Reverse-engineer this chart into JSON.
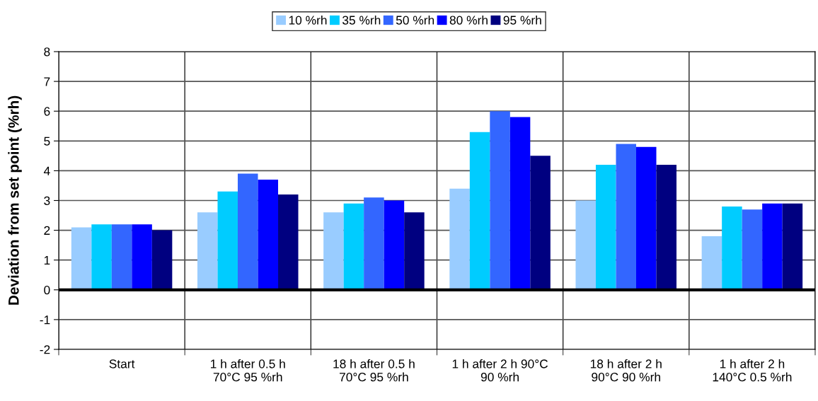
{
  "chart_data": {
    "type": "bar",
    "ylabel": "Deviation from set point (%rh)",
    "categories": [
      "Start",
      "1 h after 0.5 h\n70°C 95 %rh",
      "18 h after 0.5 h\n70°C 95 %rh",
      "1 h after 2 h 90°C\n90 %rh",
      "18 h after 2 h\n90°C 90 %rh",
      "1 h after 2 h\n140°C 0.5 %rh"
    ],
    "series": [
      {
        "name": "10 %rh",
        "color": "#99ccff",
        "values": [
          2.1,
          2.6,
          2.6,
          3.4,
          3.0,
          1.8
        ]
      },
      {
        "name": "35 %rh",
        "color": "#00ccff",
        "values": [
          2.2,
          3.3,
          2.9,
          5.3,
          4.2,
          2.8
        ]
      },
      {
        "name": "50 %rh",
        "color": "#3366ff",
        "values": [
          2.2,
          3.9,
          3.1,
          6.0,
          4.9,
          2.7
        ]
      },
      {
        "name": "80 %rh",
        "color": "#0000ff",
        "values": [
          2.2,
          3.7,
          3.0,
          5.8,
          4.8,
          2.9
        ]
      },
      {
        "name": "95 %rh",
        "color": "#000080",
        "values": [
          2.0,
          3.2,
          2.6,
          4.5,
          4.2,
          2.9
        ]
      }
    ],
    "ylim": [
      -2,
      8
    ],
    "yticks": [
      -2,
      -1,
      0,
      1,
      2,
      3,
      4,
      5,
      6,
      7,
      8
    ],
    "ref_lines": [
      {
        "axis": "y",
        "value": 0,
        "color": "#000000"
      }
    ],
    "grid": true,
    "legend": "top"
  }
}
